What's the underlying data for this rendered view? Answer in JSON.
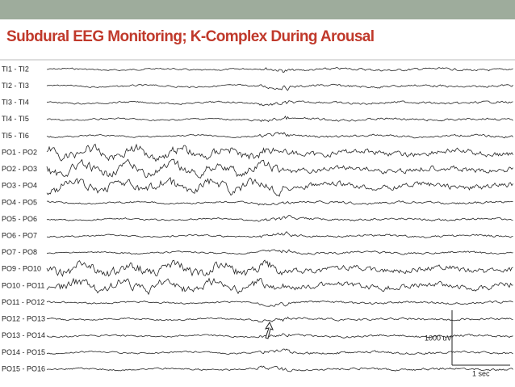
{
  "header": {
    "title": "Subdural EEG Monitoring; K-Complex During Arousal"
  },
  "channels": [
    "TI1 - TI2",
    "TI2 - TI3",
    "TI3 - TI4",
    "TI4 - TI5",
    "TI5 - TI6",
    "PO1 - PO2",
    "PO2 - PO3",
    "PO3 - PO4",
    "PO4 - PO5",
    "PO5 - PO6",
    "PO6 - PO7",
    "PO7 - PO8",
    "PO9 - PO10",
    "PO10 - PO11",
    "PO11 - PO12",
    "PO12 - PO13",
    "PO13 - PO14",
    "PO14 - PO15",
    "PO15 - PO16"
  ],
  "scale": {
    "amplitude": "1000 uV",
    "time": "1 sec"
  }
}
